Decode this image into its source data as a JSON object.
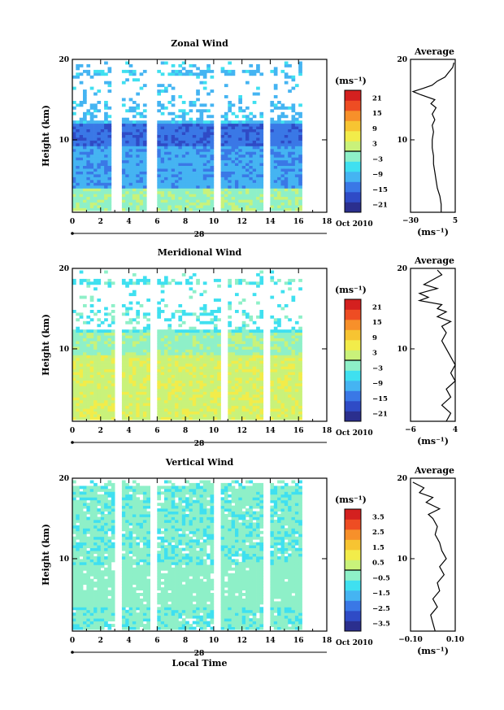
{
  "figure": {
    "date_label": "Oct 2010",
    "day_label": "28",
    "bottom_xlabel": "Local Time",
    "colormap": [
      "#2b2f8e",
      "#2f4bc6",
      "#3a78e6",
      "#45b4f2",
      "#3fe0f0",
      "#8ef0c8",
      "#c9f27a",
      "#f2ec4a",
      "#f7c432",
      "#f7902a",
      "#ee4d23",
      "#d4201f"
    ]
  },
  "chart_data": [
    {
      "type": "heatmap",
      "title": "Zonal Wind",
      "xlabel": "",
      "ylabel": "Height (km)",
      "x_ticks": [
        0,
        2,
        4,
        6,
        8,
        10,
        12,
        14,
        16,
        18
      ],
      "xlim": [
        0,
        18
      ],
      "y_ticks": [
        10,
        20
      ],
      "ylim": [
        1,
        20
      ],
      "data_gaps_hours": [
        [
          2.7,
          3.5
        ],
        [
          5.2,
          6.0
        ],
        [
          10.0,
          10.5
        ],
        [
          13.5,
          14.1
        ],
        [
          16.3,
          18
        ]
      ],
      "colorbar": {
        "label": "(ms⁻¹)",
        "ticks": [
          21,
          15,
          9,
          3,
          -3,
          -9,
          -15,
          -21
        ],
        "range": [
          -24,
          24
        ]
      },
      "average": {
        "title": "Average",
        "xlabel": "(ms⁻¹)",
        "x_ticks": [
          -30,
          5
        ],
        "xlim": [
          -30,
          5
        ],
        "profile": [
          [
            -6,
            1
          ],
          [
            -6,
            2
          ],
          [
            -7,
            3
          ],
          [
            -9,
            4
          ],
          [
            -10,
            5
          ],
          [
            -11,
            6
          ],
          [
            -12,
            7
          ],
          [
            -12,
            8
          ],
          [
            -13,
            9
          ],
          [
            -13,
            10
          ],
          [
            -12,
            11
          ],
          [
            -13,
            11.8
          ],
          [
            -11,
            12.5
          ],
          [
            -13,
            13.2
          ],
          [
            -10,
            14
          ],
          [
            -14,
            14.5
          ],
          [
            -11,
            15
          ],
          [
            -22,
            15.6
          ],
          [
            -28,
            16
          ],
          [
            -20,
            16.4
          ],
          [
            -13,
            16.8
          ],
          [
            -9,
            17.3
          ],
          [
            -3,
            17.8
          ],
          [
            0,
            18.4
          ],
          [
            3,
            19
          ],
          [
            4,
            19.6
          ]
        ]
      }
    },
    {
      "type": "heatmap",
      "title": "Meridional Wind",
      "xlabel": "",
      "ylabel": "Height (km)",
      "x_ticks": [
        0,
        2,
        4,
        6,
        8,
        10,
        12,
        14,
        16,
        18
      ],
      "xlim": [
        0,
        18
      ],
      "y_ticks": [
        10,
        20
      ],
      "ylim": [
        1,
        20
      ],
      "data_gaps_hours": [
        [
          3.0,
          3.6
        ],
        [
          5.4,
          6.0
        ],
        [
          10.4,
          10.9
        ],
        [
          13.4,
          14.0
        ],
        [
          16.3,
          18
        ]
      ],
      "colorbar": {
        "label": "(ms⁻¹)",
        "ticks": [
          21,
          15,
          9,
          3,
          -3,
          -9,
          -15,
          -21
        ],
        "range": [
          -24,
          24
        ]
      },
      "average": {
        "title": "Average",
        "xlabel": "(ms⁻¹)",
        "x_ticks": [
          -6,
          4
        ],
        "xlim": [
          -6,
          4
        ],
        "profile": [
          [
            2,
            1
          ],
          [
            3,
            2
          ],
          [
            1,
            3
          ],
          [
            3,
            4
          ],
          [
            2,
            5
          ],
          [
            4,
            6
          ],
          [
            3,
            7
          ],
          [
            4,
            8
          ],
          [
            3,
            9
          ],
          [
            2,
            10
          ],
          [
            1,
            11
          ],
          [
            2,
            12
          ],
          [
            1,
            12.8
          ],
          [
            3,
            13.4
          ],
          [
            0,
            14
          ],
          [
            2,
            14.6
          ],
          [
            0,
            15
          ],
          [
            1,
            15.5
          ],
          [
            -4,
            16
          ],
          [
            -2,
            16.4
          ],
          [
            -4,
            16.9
          ],
          [
            0,
            17.5
          ],
          [
            -3,
            18
          ],
          [
            -1,
            18.6
          ],
          [
            1,
            19.2
          ],
          [
            0,
            19.8
          ]
        ]
      }
    },
    {
      "type": "heatmap",
      "title": "Vertical Wind",
      "xlabel": "Local Time",
      "ylabel": "Height (km)",
      "x_ticks": [
        0,
        2,
        4,
        6,
        8,
        10,
        12,
        14,
        16,
        18
      ],
      "xlim": [
        0,
        18
      ],
      "y_ticks": [
        10,
        20
      ],
      "ylim": [
        1,
        20
      ],
      "data_gaps_hours": [
        [
          3.0,
          3.6
        ],
        [
          5.4,
          6.0
        ],
        [
          10.0,
          10.5
        ],
        [
          13.5,
          14.1
        ],
        [
          16.3,
          18
        ]
      ],
      "colorbar": {
        "label": "(ms⁻¹)",
        "ticks": [
          3.5,
          2.5,
          1.5,
          0.5,
          -0.5,
          -1.5,
          -2.5,
          -3.5
        ],
        "range": [
          -4,
          4
        ]
      },
      "average": {
        "title": "Average",
        "xlabel": "(ms⁻¹)",
        "x_ticks": [
          -0.1,
          0.1
        ],
        "xlim": [
          -0.1,
          0.1
        ],
        "x_tick_labels": [
          "-0.10",
          "0.10"
        ],
        "profile": [
          [
            0.01,
            1
          ],
          [
            0.0,
            2
          ],
          [
            -0.01,
            3
          ],
          [
            0.02,
            4
          ],
          [
            0.0,
            5
          ],
          [
            0.03,
            6
          ],
          [
            0.02,
            7
          ],
          [
            0.05,
            8
          ],
          [
            0.03,
            9
          ],
          [
            0.06,
            10
          ],
          [
            0.04,
            11
          ],
          [
            0.03,
            12
          ],
          [
            0.01,
            13
          ],
          [
            0.02,
            14
          ],
          [
            0.0,
            15
          ],
          [
            -0.02,
            15.5
          ],
          [
            0.03,
            16.2
          ],
          [
            -0.03,
            17
          ],
          [
            0.0,
            17.6
          ],
          [
            -0.06,
            18.2
          ],
          [
            -0.04,
            18.8
          ],
          [
            -0.09,
            19.5
          ]
        ]
      }
    }
  ]
}
